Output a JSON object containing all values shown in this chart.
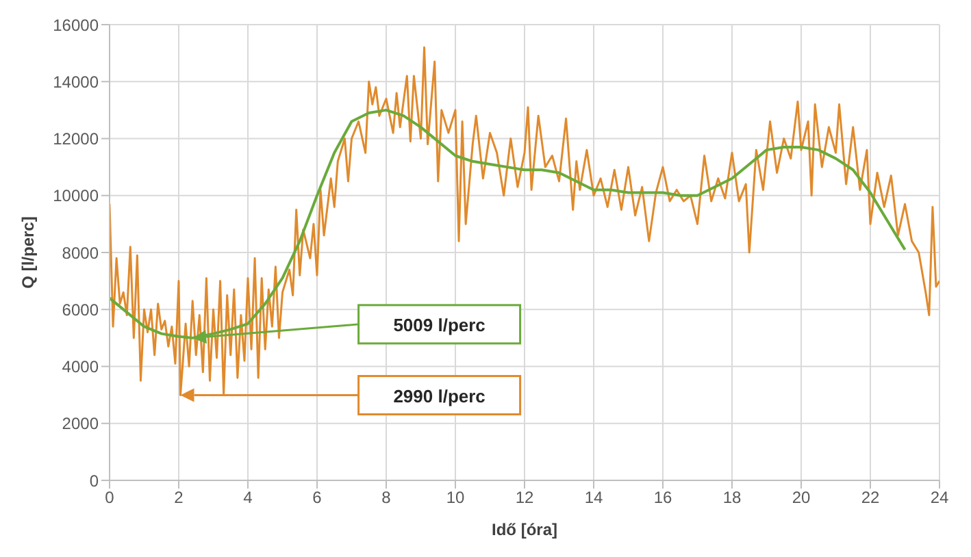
{
  "chart_data": {
    "type": "line",
    "xlabel": "Idő [óra]",
    "ylabel": "Q [l/perc]",
    "xlim": [
      0,
      24
    ],
    "xticks": [
      0,
      2,
      4,
      6,
      8,
      10,
      12,
      14,
      16,
      18,
      20,
      22,
      24
    ],
    "ylim": [
      0,
      16000
    ],
    "yticks": [
      0,
      2000,
      4000,
      6000,
      8000,
      10000,
      12000,
      14000,
      16000
    ],
    "grid": true,
    "marker": "none",
    "line_style": "solid",
    "series": [
      {
        "color": "#e08a2c",
        "x": [
          0,
          0.1,
          0.2,
          0.3,
          0.4,
          0.5,
          0.6,
          0.7,
          0.8,
          0.9,
          1.0,
          1.1,
          1.2,
          1.3,
          1.4,
          1.5,
          1.6,
          1.7,
          1.8,
          1.9,
          2.0,
          2.05,
          2.2,
          2.3,
          2.4,
          2.5,
          2.6,
          2.7,
          2.8,
          2.9,
          3.0,
          3.1,
          3.2,
          3.3,
          3.4,
          3.5,
          3.6,
          3.7,
          3.8,
          3.9,
          4.0,
          4.1,
          4.2,
          4.3,
          4.4,
          4.5,
          4.6,
          4.7,
          4.8,
          4.9,
          5.0,
          5.2,
          5.3,
          5.4,
          5.5,
          5.6,
          5.8,
          5.9,
          6.0,
          6.1,
          6.2,
          6.4,
          6.5,
          6.6,
          6.8,
          6.9,
          7.0,
          7.2,
          7.4,
          7.5,
          7.6,
          7.7,
          7.8,
          8.0,
          8.2,
          8.3,
          8.4,
          8.6,
          8.7,
          8.8,
          9.0,
          9.1,
          9.2,
          9.4,
          9.5,
          9.6,
          9.8,
          10.0,
          10.1,
          10.2,
          10.3,
          10.5,
          10.6,
          10.8,
          11.0,
          11.2,
          11.4,
          11.6,
          11.8,
          12.0,
          12.1,
          12.2,
          12.4,
          12.6,
          12.8,
          13.0,
          13.2,
          13.4,
          13.5,
          13.6,
          13.8,
          14.0,
          14.2,
          14.4,
          14.6,
          14.8,
          15.0,
          15.2,
          15.4,
          15.6,
          15.8,
          16.0,
          16.2,
          16.4,
          16.6,
          16.8,
          17.0,
          17.2,
          17.4,
          17.6,
          17.8,
          18.0,
          18.2,
          18.4,
          18.5,
          18.7,
          18.9,
          19.1,
          19.3,
          19.5,
          19.7,
          19.9,
          20.0,
          20.2,
          20.3,
          20.4,
          20.6,
          20.8,
          21.0,
          21.1,
          21.3,
          21.5,
          21.7,
          21.9,
          22.0,
          22.2,
          22.4,
          22.6,
          22.8,
          23.0,
          23.2,
          23.4,
          23.6,
          23.7,
          23.8,
          23.9,
          24.0
        ],
        "values": [
          9700,
          5400,
          7800,
          6200,
          6600,
          5800,
          8200,
          5000,
          7900,
          3500,
          6000,
          5200,
          6000,
          4400,
          6200,
          5300,
          5600,
          4700,
          5400,
          4100,
          7000,
          2990,
          5500,
          4000,
          6300,
          4400,
          5800,
          3800,
          7100,
          3500,
          6000,
          4300,
          7000,
          3000,
          6500,
          4400,
          6700,
          3600,
          5800,
          4200,
          7100,
          4600,
          7800,
          3600,
          7100,
          4600,
          6700,
          5400,
          7500,
          5000,
          6600,
          7400,
          6500,
          9500,
          7200,
          8800,
          7800,
          9000,
          7200,
          10200,
          8600,
          10600,
          9600,
          11200,
          12000,
          10500,
          12000,
          12600,
          11500,
          14000,
          13200,
          13800,
          12800,
          13400,
          12200,
          13600,
          12400,
          14200,
          11900,
          14200,
          12000,
          15200,
          11800,
          14700,
          10500,
          13000,
          12200,
          13000,
          8400,
          12600,
          9000,
          11800,
          12800,
          10600,
          12200,
          11500,
          10000,
          12000,
          10300,
          11500,
          13100,
          10200,
          12800,
          11000,
          11400,
          10500,
          12700,
          9500,
          11200,
          10200,
          11600,
          10000,
          10600,
          9600,
          10900,
          9500,
          11000,
          9300,
          10300,
          8400,
          10100,
          11000,
          9800,
          10200,
          9800,
          10000,
          9000,
          11400,
          9800,
          10600,
          9900,
          11500,
          9800,
          10400,
          8000,
          11600,
          10200,
          12600,
          10800,
          12000,
          11300,
          13300,
          11600,
          12600,
          10000,
          13200,
          11000,
          12400,
          11500,
          13200,
          10400,
          12400,
          10200,
          11600,
          9000,
          10800,
          9600,
          10700,
          8600,
          9700,
          8400,
          8000,
          6600,
          5800,
          9600,
          6800,
          7000
        ]
      },
      {
        "color": "#6aaa3a",
        "x": [
          0,
          0.5,
          1,
          1.5,
          2,
          2.4,
          3,
          3.5,
          4,
          4.5,
          5,
          5.5,
          6,
          6.5,
          7,
          7.5,
          8,
          8.5,
          9,
          9.5,
          10,
          10.5,
          11,
          11.5,
          12,
          12.5,
          13,
          13.5,
          14,
          14.5,
          15,
          15.5,
          16,
          16.5,
          17,
          17.5,
          18,
          18.5,
          19,
          19.5,
          20,
          20.5,
          21,
          21.5,
          22,
          22.5,
          23
        ],
        "values": [
          6400,
          5900,
          5400,
          5150,
          5050,
          5000,
          5150,
          5300,
          5500,
          6200,
          7100,
          8400,
          10000,
          11500,
          12600,
          12900,
          13000,
          12800,
          12400,
          11900,
          11400,
          11200,
          11100,
          11000,
          10900,
          10900,
          10800,
          10500,
          10200,
          10200,
          10100,
          10100,
          10100,
          10000,
          10000,
          10300,
          10600,
          11100,
          11600,
          11700,
          11700,
          11600,
          11300,
          10900,
          10100,
          9100,
          8100
        ]
      }
    ],
    "annotations": [
      "5009 l/perc",
      "2990 l/perc"
    ]
  }
}
